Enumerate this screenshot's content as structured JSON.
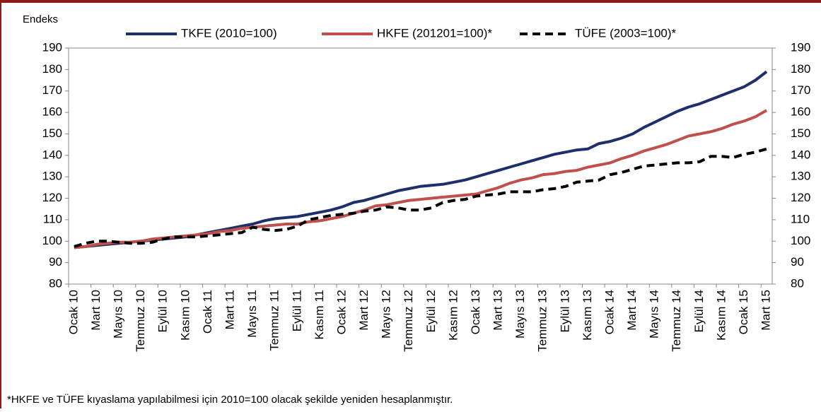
{
  "chart_data": {
    "type": "line",
    "y_label": "Endeks",
    "note": "*HKFE ve TÜFE kıyaslama yapılabilmesi için 2010=100 olacak şekilde yeniden hesaplanmıştır.",
    "categories": [
      "Ocak 10",
      null,
      "Mart 10",
      null,
      "Mayıs 10",
      null,
      "Temmuz 10",
      null,
      "Eylül 10",
      null,
      "Kasım 10",
      null,
      "Ocak 11",
      null,
      "Mart 11",
      null,
      "Mayıs 11",
      null,
      "Temmuz 11",
      null,
      "Eylül 11",
      null,
      "Kasım 11",
      null,
      "Ocak 12",
      null,
      "Mart 12",
      null,
      "Mayıs 12",
      null,
      "Temmuz 12",
      null,
      "Eylül 12",
      null,
      "Kasım 12",
      null,
      "Ocak 13",
      null,
      "Mart 13",
      null,
      "Mayıs 13",
      null,
      "Temmuz 13",
      null,
      "Eylül 13",
      null,
      "Kasım 13",
      null,
      "Ocak 14",
      null,
      "Mart 14",
      null,
      "Mayıs 14",
      null,
      "Temmuz 14",
      null,
      "Eylül 14",
      null,
      "Kasım 14",
      null,
      "Ocak 15",
      null,
      "Mart 15"
    ],
    "series": [
      {
        "name": "TKFE (2010=100)",
        "color": "#1f2f6b",
        "line_style": "solid",
        "values": [
          97,
          97.5,
          98,
          98.5,
          99,
          99.5,
          100,
          100.5,
          101,
          101.5,
          102,
          103,
          104,
          105,
          106,
          107,
          108,
          109.5,
          110.5,
          111,
          111.5,
          112.5,
          113.5,
          114.5,
          116,
          118,
          119,
          120.5,
          122,
          123.5,
          124.5,
          125.5,
          126,
          126.5,
          127.5,
          128.5,
          130,
          131.5,
          133,
          134.5,
          136,
          137.5,
          139,
          140.5,
          141.5,
          142.5,
          143,
          145.5,
          146.5,
          148,
          150,
          153,
          155.5,
          158,
          160.5,
          162.5,
          164,
          166,
          168,
          170,
          172,
          175,
          179
        ]
      },
      {
        "name": "HKFE (201201=100)*",
        "color": "#c0504d",
        "line_style": "solid",
        "values": [
          97,
          97.5,
          98.5,
          99,
          99.5,
          99.5,
          100,
          101,
          101.5,
          102,
          102.5,
          103,
          103.5,
          104.5,
          105,
          106,
          106.5,
          107,
          107.5,
          108,
          108,
          109,
          109.5,
          110.5,
          111.5,
          113,
          114.5,
          116.5,
          117,
          118,
          119,
          119.5,
          120,
          120.5,
          121,
          121.5,
          122,
          123.5,
          125,
          127,
          128.5,
          129.5,
          131,
          131.5,
          132.5,
          133,
          134.5,
          135.5,
          136.5,
          138.5,
          140,
          142,
          143.5,
          145,
          147,
          149,
          150,
          151,
          152.5,
          154.5,
          156,
          158,
          161
        ]
      },
      {
        "name": "TÜFE (2003=100)*",
        "color": "#000000",
        "line_style": "dashed",
        "values": [
          97.5,
          99,
          100,
          100,
          99.5,
          99,
          99,
          99.5,
          101,
          102,
          102,
          102,
          102.5,
          103,
          103.5,
          104,
          106.5,
          105.5,
          105,
          105.5,
          107,
          110,
          111,
          112,
          112.5,
          113,
          114,
          114.5,
          116,
          115.5,
          114.5,
          114.5,
          115.5,
          118,
          119,
          119.5,
          121,
          121.5,
          122,
          123,
          123,
          123,
          124,
          124.5,
          125.5,
          127.5,
          128,
          128.5,
          131,
          132,
          133.5,
          135,
          135.5,
          136,
          136.5,
          136.5,
          137,
          139.5,
          139.5,
          139,
          140.5,
          141.5,
          143
        ]
      }
    ],
    "ylim": [
      80,
      190
    ],
    "yticks": [
      80,
      90,
      100,
      110,
      120,
      130,
      140,
      150,
      160,
      170,
      180,
      190
    ],
    "y2lim": [
      80,
      190
    ],
    "y2ticks": [
      80,
      90,
      100,
      110,
      120,
      130,
      140,
      150,
      160,
      170,
      180,
      190
    ]
  }
}
